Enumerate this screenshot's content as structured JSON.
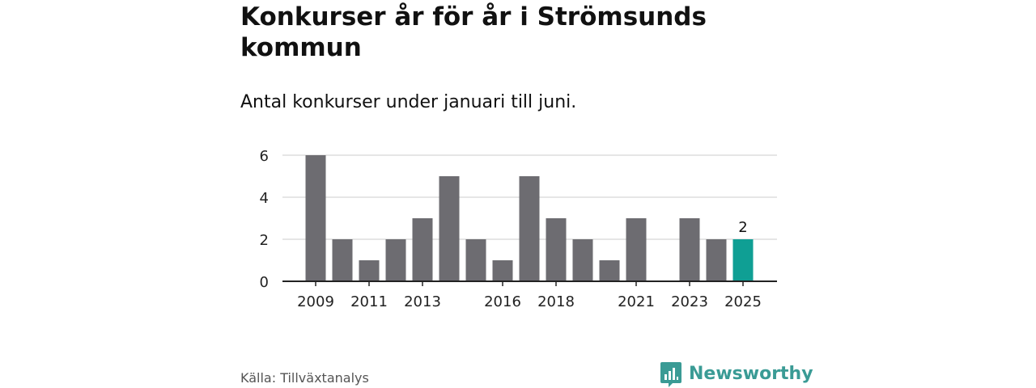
{
  "header": {
    "title": "Konkurser år för år i Strömsunds kommun",
    "subtitle": "Antal konkurser under januari till juni."
  },
  "footer": {
    "source": "Källa: Tillväxtanalys",
    "brand": "Newsworthy",
    "brand_icon": "bar-chart-speech-icon"
  },
  "colors": {
    "bar": "#6d6c71",
    "highlight": "#0f9f94",
    "grid": "#dddddd",
    "axis": "#222222",
    "brand": "#3a9b95"
  },
  "chart_data": {
    "type": "bar",
    "categories": [
      "2009",
      "2010",
      "2011",
      "2012",
      "2013",
      "2014",
      "2015",
      "2016",
      "2017",
      "2018",
      "2019",
      "2020",
      "2021",
      "2022",
      "2023",
      "2024",
      "2025"
    ],
    "values": [
      6,
      2,
      1,
      2,
      3,
      5,
      2,
      1,
      5,
      3,
      2,
      1,
      3,
      0,
      3,
      2,
      2
    ],
    "xtick_labels": [
      "2009",
      "2011",
      "2013",
      "2016",
      "2018",
      "2021",
      "2023",
      "2025"
    ],
    "yticks": [
      0,
      2,
      4,
      6
    ],
    "ylim": [
      0,
      6
    ],
    "highlight_category": "2025",
    "highlight_label": "2",
    "grid": true
  }
}
